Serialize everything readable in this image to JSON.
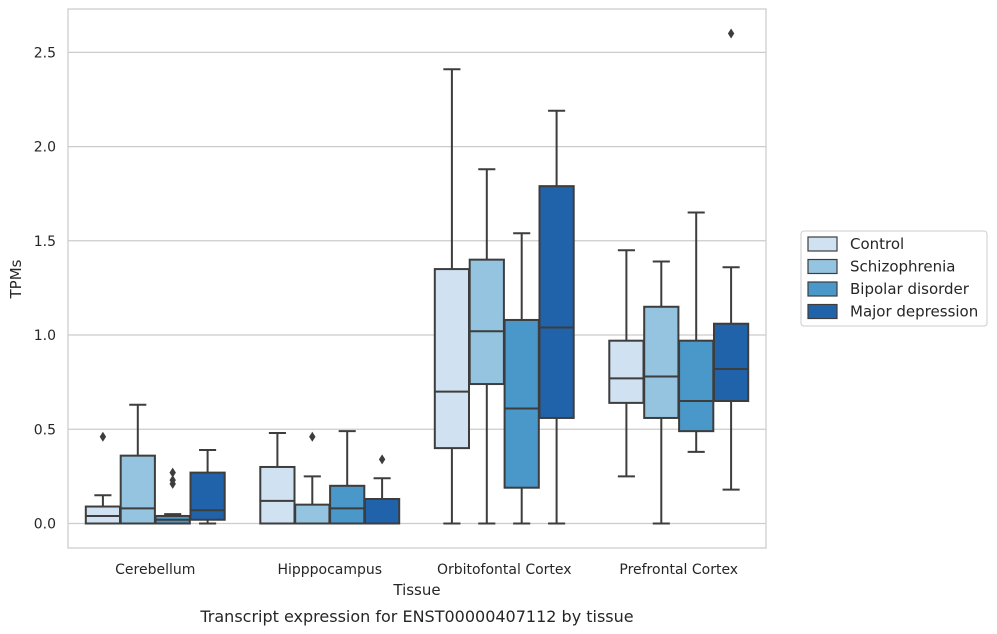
{
  "chart_data": {
    "type": "box",
    "title": "",
    "caption": "Transcript expression for ENST00000407112 by tissue",
    "xlabel": "Tissue",
    "ylabel": "TPMs",
    "ylim": [
      -0.13,
      2.73
    ],
    "yticks": [
      0.0,
      0.5,
      1.0,
      1.5,
      2.0,
      2.5
    ],
    "ytick_labels": [
      "0.0",
      "0.5",
      "1.0",
      "1.5",
      "2.0",
      "2.5"
    ],
    "grid": "horizontal",
    "legend_position": "right",
    "categories": [
      "Cerebellum",
      "Hipppocampus",
      "Orbitofontal Cortex",
      "Prefrontal Cortex"
    ],
    "series": [
      {
        "name": "Control",
        "color": "#d0e1f2",
        "boxes": [
          {
            "whislo": 0.0,
            "q1": 0.0,
            "med": 0.04,
            "q3": 0.09,
            "whishi": 0.15,
            "fliers": [
              0.46
            ]
          },
          {
            "whislo": 0.0,
            "q1": 0.0,
            "med": 0.12,
            "q3": 0.3,
            "whishi": 0.48,
            "fliers": []
          },
          {
            "whislo": 0.0,
            "q1": 0.4,
            "med": 0.7,
            "q3": 1.35,
            "whishi": 2.41,
            "fliers": []
          },
          {
            "whislo": 0.25,
            "q1": 0.64,
            "med": 0.77,
            "q3": 0.97,
            "whishi": 1.45,
            "fliers": []
          }
        ]
      },
      {
        "name": "Schizophrenia",
        "color": "#94c4df",
        "boxes": [
          {
            "whislo": 0.0,
            "q1": 0.0,
            "med": 0.08,
            "q3": 0.36,
            "whishi": 0.63,
            "fliers": []
          },
          {
            "whislo": 0.0,
            "q1": 0.0,
            "med": 0.0,
            "q3": 0.1,
            "whishi": 0.25,
            "fliers": [
              0.46
            ]
          },
          {
            "whislo": 0.0,
            "q1": 0.74,
            "med": 1.02,
            "q3": 1.4,
            "whishi": 1.88,
            "fliers": []
          },
          {
            "whislo": 0.0,
            "q1": 0.56,
            "med": 0.78,
            "q3": 1.15,
            "whishi": 1.39,
            "fliers": []
          }
        ]
      },
      {
        "name": "Bipolar disorder",
        "color": "#4a98c9",
        "boxes": [
          {
            "whislo": 0.0,
            "q1": 0.0,
            "med": 0.02,
            "q3": 0.04,
            "whishi": 0.05,
            "fliers": [
              0.21,
              0.23,
              0.27
            ]
          },
          {
            "whislo": 0.0,
            "q1": 0.0,
            "med": 0.08,
            "q3": 0.2,
            "whishi": 0.49,
            "fliers": []
          },
          {
            "whislo": 0.0,
            "q1": 0.19,
            "med": 0.61,
            "q3": 1.08,
            "whishi": 1.54,
            "fliers": []
          },
          {
            "whislo": 0.38,
            "q1": 0.49,
            "med": 0.65,
            "q3": 0.97,
            "whishi": 1.65,
            "fliers": []
          }
        ]
      },
      {
        "name": "Major depression",
        "color": "#2163aa",
        "boxes": [
          {
            "whislo": 0.0,
            "q1": 0.02,
            "med": 0.07,
            "q3": 0.27,
            "whishi": 0.39,
            "fliers": []
          },
          {
            "whislo": 0.0,
            "q1": 0.0,
            "med": 0.0,
            "q3": 0.13,
            "whishi": 0.24,
            "fliers": [
              0.34
            ]
          },
          {
            "whislo": 0.0,
            "q1": 0.56,
            "med": 1.04,
            "q3": 1.79,
            "whishi": 2.19,
            "fliers": []
          },
          {
            "whislo": 0.18,
            "q1": 0.65,
            "med": 0.82,
            "q3": 1.06,
            "whishi": 1.36,
            "fliers": [
              2.6
            ]
          }
        ]
      }
    ]
  }
}
